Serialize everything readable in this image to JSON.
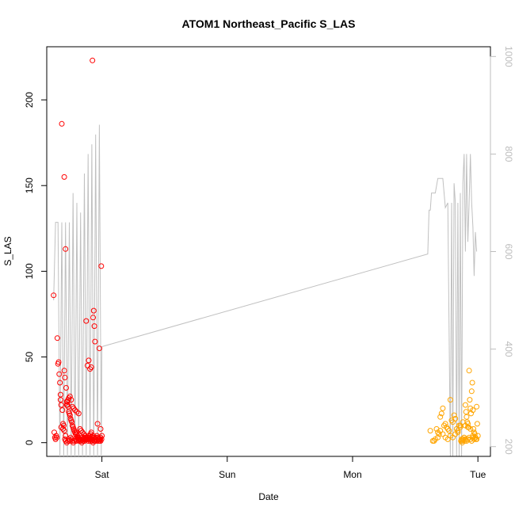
{
  "chart_data": {
    "type": "scatter",
    "title": "ATOM1 Northeast_Pacific S_LAS",
    "xlabel": "Date",
    "ylabel": "S_LAS",
    "xlim": [
      -0.44,
      3.1
    ],
    "ylim": [
      -8,
      231
    ],
    "x_ticks": [
      {
        "value": 0,
        "label": "Sat"
      },
      {
        "value": 1,
        "label": "Sun"
      },
      {
        "value": 2,
        "label": "Mon"
      },
      {
        "value": 3,
        "label": "Tue"
      }
    ],
    "y_ticks": [
      {
        "value": 0,
        "label": "0"
      },
      {
        "value": 50,
        "label": "50"
      },
      {
        "value": 100,
        "label": "100"
      },
      {
        "value": 150,
        "label": "150"
      },
      {
        "value": 200,
        "label": "200"
      }
    ],
    "y2_ticks": [
      {
        "value": 200,
        "label": "200"
      },
      {
        "value": 400,
        "label": "400"
      },
      {
        "value": 600,
        "label": "600"
      },
      {
        "value": 800,
        "label": "800"
      },
      {
        "value": 1000,
        "label": "1000"
      }
    ],
    "y2lim": [
      1020,
      180
    ],
    "grid": false,
    "colors": {
      "series_1": "#ff0000",
      "series_2": "#ffa500",
      "depth_line": "#c0c0c0",
      "axis": "#000000",
      "right_axis": "#bdbdbd"
    },
    "series": [
      {
        "color": "#ff0000",
        "x": [
          -0.385,
          -0.38,
          -0.375,
          -0.37,
          -0.365,
          -0.36,
          -0.355,
          -0.35,
          -0.345,
          -0.34,
          -0.335,
          -0.33,
          -0.33,
          -0.325,
          -0.32,
          -0.315,
          -0.31,
          -0.305,
          -0.3,
          -0.3,
          -0.295,
          -0.29,
          -0.285,
          -0.28,
          -0.275,
          -0.27,
          -0.265,
          -0.26,
          -0.255,
          -0.25,
          -0.245,
          -0.24,
          -0.235,
          -0.23,
          -0.225,
          -0.22,
          -0.215,
          -0.21,
          -0.205,
          -0.2,
          -0.195,
          -0.19,
          -0.185,
          -0.18,
          -0.175,
          -0.17,
          -0.165,
          -0.16,
          -0.155,
          -0.15,
          -0.145,
          -0.14,
          -0.135,
          -0.13,
          -0.125,
          -0.12,
          -0.115,
          -0.11,
          -0.105,
          -0.1,
          -0.095,
          -0.09,
          -0.085,
          -0.08,
          -0.075,
          -0.07,
          -0.065,
          -0.06,
          -0.055,
          -0.05,
          -0.045,
          -0.04,
          -0.035,
          -0.03,
          -0.025,
          -0.02,
          -0.015,
          -0.01,
          -0.005,
          0.0,
          -0.295,
          -0.288,
          -0.28,
          -0.272,
          -0.265,
          -0.258,
          -0.25,
          -0.243,
          -0.235,
          -0.228,
          -0.22,
          -0.213,
          -0.205,
          -0.198,
          -0.19,
          -0.183,
          -0.175,
          -0.168,
          -0.16,
          -0.153,
          -0.145,
          -0.138,
          -0.13,
          -0.123,
          -0.115,
          -0.108,
          -0.1,
          -0.093,
          -0.085,
          -0.078,
          -0.07,
          -0.063,
          -0.055,
          -0.048,
          -0.04,
          -0.033,
          -0.025,
          -0.018,
          -0.01,
          -0.003,
          -0.325,
          -0.31,
          -0.3,
          -0.29,
          -0.28,
          -0.275,
          -0.27,
          -0.265,
          -0.255,
          -0.245,
          -0.235,
          -0.225,
          -0.215,
          -0.2,
          -0.185,
          -0.175,
          -0.165,
          -0.155,
          -0.145,
          -0.135,
          -0.125,
          -0.115,
          -0.105,
          -0.095,
          -0.085,
          -0.075,
          -0.07,
          -0.065,
          -0.06,
          -0.055,
          -0.02,
          -0.01
        ],
        "y": [
          86,
          6,
          3,
          2,
          4,
          3,
          61,
          46,
          47,
          40,
          35,
          28,
          25,
          22,
          186,
          19,
          11,
          10,
          155,
          42,
          38,
          113,
          32,
          24,
          22,
          21,
          18,
          17,
          16,
          14,
          13,
          12,
          10,
          9,
          8,
          7,
          6,
          5,
          6,
          5,
          4,
          3,
          3,
          2,
          2,
          1,
          2,
          3,
          2,
          1,
          2,
          3,
          4,
          3,
          2,
          2,
          3,
          4,
          2,
          3,
          4,
          5,
          6,
          3,
          2,
          4,
          3,
          2,
          1,
          3,
          2,
          4,
          11,
          3,
          2,
          1,
          2,
          3,
          103,
          4,
          2,
          1,
          0,
          1,
          2,
          1,
          3,
          2,
          1,
          0,
          1,
          2,
          1,
          3,
          2,
          1,
          2,
          1,
          0,
          1,
          2,
          1,
          2,
          3,
          2,
          1,
          2,
          1,
          2,
          1,
          0,
          1,
          2,
          3,
          1,
          2,
          1,
          2,
          1,
          2,
          9,
          8,
          7,
          4,
          22,
          24,
          25,
          26,
          27,
          25,
          21,
          20,
          19,
          18,
          17,
          8,
          7,
          6,
          5,
          4,
          71,
          45,
          48,
          43,
          44,
          223,
          73,
          77,
          68,
          59,
          55,
          8
        ]
      },
      {
        "color": "#ffa500",
        "x": [
          2.62,
          2.64,
          2.66,
          2.67,
          2.68,
          2.69,
          2.7,
          2.71,
          2.72,
          2.73,
          2.74,
          2.75,
          2.76,
          2.77,
          2.78,
          2.79,
          2.8,
          2.81,
          2.82,
          2.83,
          2.84,
          2.85,
          2.86,
          2.865,
          2.87,
          2.875,
          2.88,
          2.885,
          2.89,
          2.895,
          2.9,
          2.905,
          2.91,
          2.915,
          2.92,
          2.925,
          2.93,
          2.935,
          2.94,
          2.945,
          2.95,
          2.955,
          2.96,
          2.965,
          2.97,
          2.975,
          2.98,
          2.985,
          2.99,
          2.995,
          3.0,
          2.65,
          2.68,
          2.7,
          2.72,
          2.74,
          2.76,
          2.78,
          2.8,
          2.82,
          2.84,
          2.86,
          2.88,
          2.9,
          2.92,
          2.94,
          2.96,
          2.98,
          2.87,
          2.88,
          2.89,
          2.9,
          2.91,
          2.92,
          2.93,
          2.94,
          2.95,
          2.96,
          2.97,
          2.98,
          2.99
        ],
        "y": [
          7,
          1,
          2,
          8,
          3,
          5,
          15,
          17,
          20,
          10,
          11,
          9,
          8,
          7,
          25,
          13,
          12,
          16,
          14,
          8,
          7,
          10,
          9,
          1,
          2,
          0,
          1,
          2,
          3,
          1,
          22,
          18,
          15,
          12,
          11,
          9,
          42,
          25,
          20,
          17,
          30,
          35,
          19,
          8,
          6,
          5,
          3,
          2,
          21,
          11,
          4,
          1,
          6,
          7,
          5,
          3,
          2,
          4,
          3,
          5,
          6,
          10,
          12,
          10,
          9,
          8,
          4,
          3,
          1,
          2,
          3,
          2,
          1,
          2,
          3,
          2,
          1,
          3,
          2,
          3,
          2
        ]
      }
    ],
    "depth_line": {
      "color": "#c0c0c0",
      "x": [
        -0.385,
        -0.37,
        -0.35,
        -0.335,
        -0.32,
        -0.305,
        -0.29,
        -0.275,
        -0.26,
        -0.245,
        -0.23,
        -0.215,
        -0.2,
        -0.185,
        -0.17,
        -0.155,
        -0.14,
        -0.125,
        -0.11,
        -0.095,
        -0.08,
        -0.065,
        -0.05,
        -0.035,
        -0.02,
        -0.005,
        0.0,
        2.6,
        2.61,
        2.62,
        2.63,
        2.64,
        2.66,
        2.68,
        2.7,
        2.72,
        2.74,
        2.76,
        2.78,
        2.79,
        2.8,
        2.81,
        2.82,
        2.83,
        2.84,
        2.85,
        2.86,
        2.87,
        2.88,
        2.89,
        2.9,
        2.91,
        2.92,
        2.93,
        2.94,
        2.95,
        2.96,
        2.97,
        2.98,
        2.99
      ],
      "y": [
        500,
        660,
        660,
        180,
        660,
        180,
        660,
        180,
        660,
        180,
        720,
        180,
        700,
        180,
        680,
        180,
        760,
        180,
        800,
        180,
        820,
        180,
        840,
        180,
        860,
        180,
        405,
        595,
        685,
        685,
        720,
        720,
        720,
        750,
        750,
        750,
        690,
        700,
        180,
        700,
        180,
        740,
        700,
        180,
        700,
        180,
        720,
        180,
        740,
        800,
        600,
        800,
        620,
        700,
        800,
        700,
        650,
        550,
        640,
        600
      ]
    }
  }
}
